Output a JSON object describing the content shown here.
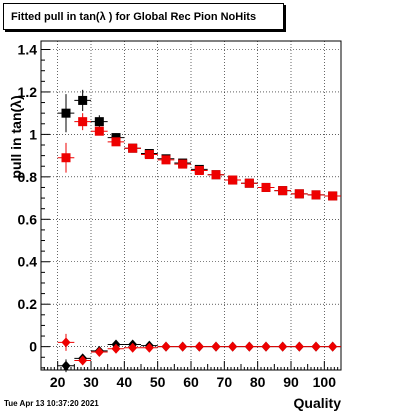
{
  "title": "Fitted pull in tan(λ ) for Global Rec Pion NoHits",
  "timestamp": "Tue Apr 13 10:37:20 2021",
  "colors": {
    "series_black": "#000000",
    "series_red": "#ee0000",
    "grid": "#000000"
  },
  "chart_data": {
    "type": "scatter",
    "title": "Fitted pull in tan(λ ) for Global Rec Pion NoHits",
    "xlabel": "Quality",
    "ylabel": "pull in tan(λ)",
    "xlim": [
      15,
      105
    ],
    "ylim": [
      -0.11,
      1.44
    ],
    "xticks": [
      20,
      30,
      40,
      50,
      60,
      70,
      80,
      90,
      100
    ],
    "yticks": [
      0,
      0.2,
      0.4,
      0.6,
      0.8,
      1,
      1.2,
      1.4
    ],
    "ytick_labels": [
      "0",
      "0.2",
      "0.4",
      "0.6",
      "0.8",
      "1",
      "1.2",
      "1.4"
    ],
    "grid": true,
    "x_error": 2.5,
    "series": [
      {
        "marker": "square",
        "color": "#000000",
        "points": [
          {
            "x": 22.5,
            "y": 1.1,
            "err": 0.09
          },
          {
            "x": 27.5,
            "y": 1.16,
            "err": 0.05
          },
          {
            "x": 32.5,
            "y": 1.06,
            "err": 0.03
          },
          {
            "x": 37.5,
            "y": 0.985,
            "err": 0.02
          },
          {
            "x": 42.5,
            "y": 0.935,
            "err": 0.015
          },
          {
            "x": 47.5,
            "y": 0.91,
            "err": 0.015
          },
          {
            "x": 52.5,
            "y": 0.885,
            "err": 0.015
          },
          {
            "x": 57.5,
            "y": 0.865,
            "err": 0.01
          },
          {
            "x": 62.5,
            "y": 0.835,
            "err": 0.01
          },
          {
            "x": 67.5,
            "y": 0.81,
            "err": 0.01
          },
          {
            "x": 72.5,
            "y": 0.785,
            "err": 0.01
          },
          {
            "x": 77.5,
            "y": 0.77,
            "err": 0.01
          },
          {
            "x": 82.5,
            "y": 0.75,
            "err": 0.01
          },
          {
            "x": 87.5,
            "y": 0.735,
            "err": 0.01
          },
          {
            "x": 92.5,
            "y": 0.72,
            "err": 0.01
          },
          {
            "x": 97.5,
            "y": 0.715,
            "err": 0.01
          },
          {
            "x": 102.5,
            "y": 0.71,
            "err": 0.01
          }
        ]
      },
      {
        "marker": "square",
        "color": "#ee0000",
        "points": [
          {
            "x": 22.5,
            "y": 0.89,
            "err": 0.07
          },
          {
            "x": 27.5,
            "y": 1.06,
            "err": 0.04
          },
          {
            "x": 32.5,
            "y": 1.015,
            "err": 0.02
          },
          {
            "x": 37.5,
            "y": 0.965,
            "err": 0.015
          },
          {
            "x": 42.5,
            "y": 0.935,
            "err": 0.015
          },
          {
            "x": 47.5,
            "y": 0.905,
            "err": 0.01
          },
          {
            "x": 52.5,
            "y": 0.88,
            "err": 0.01
          },
          {
            "x": 57.5,
            "y": 0.86,
            "err": 0.01
          },
          {
            "x": 62.5,
            "y": 0.83,
            "err": 0.01
          },
          {
            "x": 67.5,
            "y": 0.81,
            "err": 0.01
          },
          {
            "x": 72.5,
            "y": 0.785,
            "err": 0.01
          },
          {
            "x": 77.5,
            "y": 0.77,
            "err": 0.01
          },
          {
            "x": 82.5,
            "y": 0.75,
            "err": 0.01
          },
          {
            "x": 87.5,
            "y": 0.735,
            "err": 0.01
          },
          {
            "x": 92.5,
            "y": 0.72,
            "err": 0.01
          },
          {
            "x": 97.5,
            "y": 0.715,
            "err": 0.01
          },
          {
            "x": 102.5,
            "y": 0.71,
            "err": 0.01
          }
        ]
      },
      {
        "marker": "diamond",
        "color": "#000000",
        "points": [
          {
            "x": 22.5,
            "y": -0.09,
            "err": 0.03
          },
          {
            "x": 27.5,
            "y": -0.055,
            "err": 0.02
          },
          {
            "x": 32.5,
            "y": -0.02,
            "err": 0.015
          },
          {
            "x": 37.5,
            "y": 0.01,
            "err": 0.01
          },
          {
            "x": 42.5,
            "y": 0.01,
            "err": 0.01
          },
          {
            "x": 47.5,
            "y": 0.005,
            "err": 0.01
          },
          {
            "x": 52.5,
            "y": 0.0,
            "err": 0.01
          },
          {
            "x": 57.5,
            "y": 0.0,
            "err": 0.01
          },
          {
            "x": 62.5,
            "y": 0.0,
            "err": 0.005
          },
          {
            "x": 67.5,
            "y": 0.0,
            "err": 0.005
          },
          {
            "x": 72.5,
            "y": 0.0,
            "err": 0.005
          },
          {
            "x": 77.5,
            "y": 0.0,
            "err": 0.005
          },
          {
            "x": 82.5,
            "y": 0.0,
            "err": 0.005
          },
          {
            "x": 87.5,
            "y": 0.0,
            "err": 0.005
          },
          {
            "x": 92.5,
            "y": 0.0,
            "err": 0.005
          },
          {
            "x": 97.5,
            "y": 0.0,
            "err": 0.005
          },
          {
            "x": 102.5,
            "y": 0.0,
            "err": 0.005
          }
        ]
      },
      {
        "marker": "diamond",
        "color": "#ee0000",
        "points": [
          {
            "x": 22.5,
            "y": 0.02,
            "err": 0.04
          },
          {
            "x": 27.5,
            "y": -0.065,
            "err": 0.02
          },
          {
            "x": 32.5,
            "y": -0.025,
            "err": 0.015
          },
          {
            "x": 37.5,
            "y": -0.01,
            "err": 0.01
          },
          {
            "x": 42.5,
            "y": -0.005,
            "err": 0.01
          },
          {
            "x": 47.5,
            "y": -0.005,
            "err": 0.01
          },
          {
            "x": 52.5,
            "y": 0.0,
            "err": 0.01
          },
          {
            "x": 57.5,
            "y": 0.0,
            "err": 0.01
          },
          {
            "x": 62.5,
            "y": 0.0,
            "err": 0.005
          },
          {
            "x": 67.5,
            "y": 0.0,
            "err": 0.005
          },
          {
            "x": 72.5,
            "y": 0.0,
            "err": 0.005
          },
          {
            "x": 77.5,
            "y": 0.0,
            "err": 0.005
          },
          {
            "x": 82.5,
            "y": 0.0,
            "err": 0.005
          },
          {
            "x": 87.5,
            "y": 0.0,
            "err": 0.005
          },
          {
            "x": 92.5,
            "y": 0.0,
            "err": 0.005
          },
          {
            "x": 97.5,
            "y": 0.0,
            "err": 0.005
          },
          {
            "x": 102.5,
            "y": 0.0,
            "err": 0.005
          }
        ]
      }
    ]
  }
}
